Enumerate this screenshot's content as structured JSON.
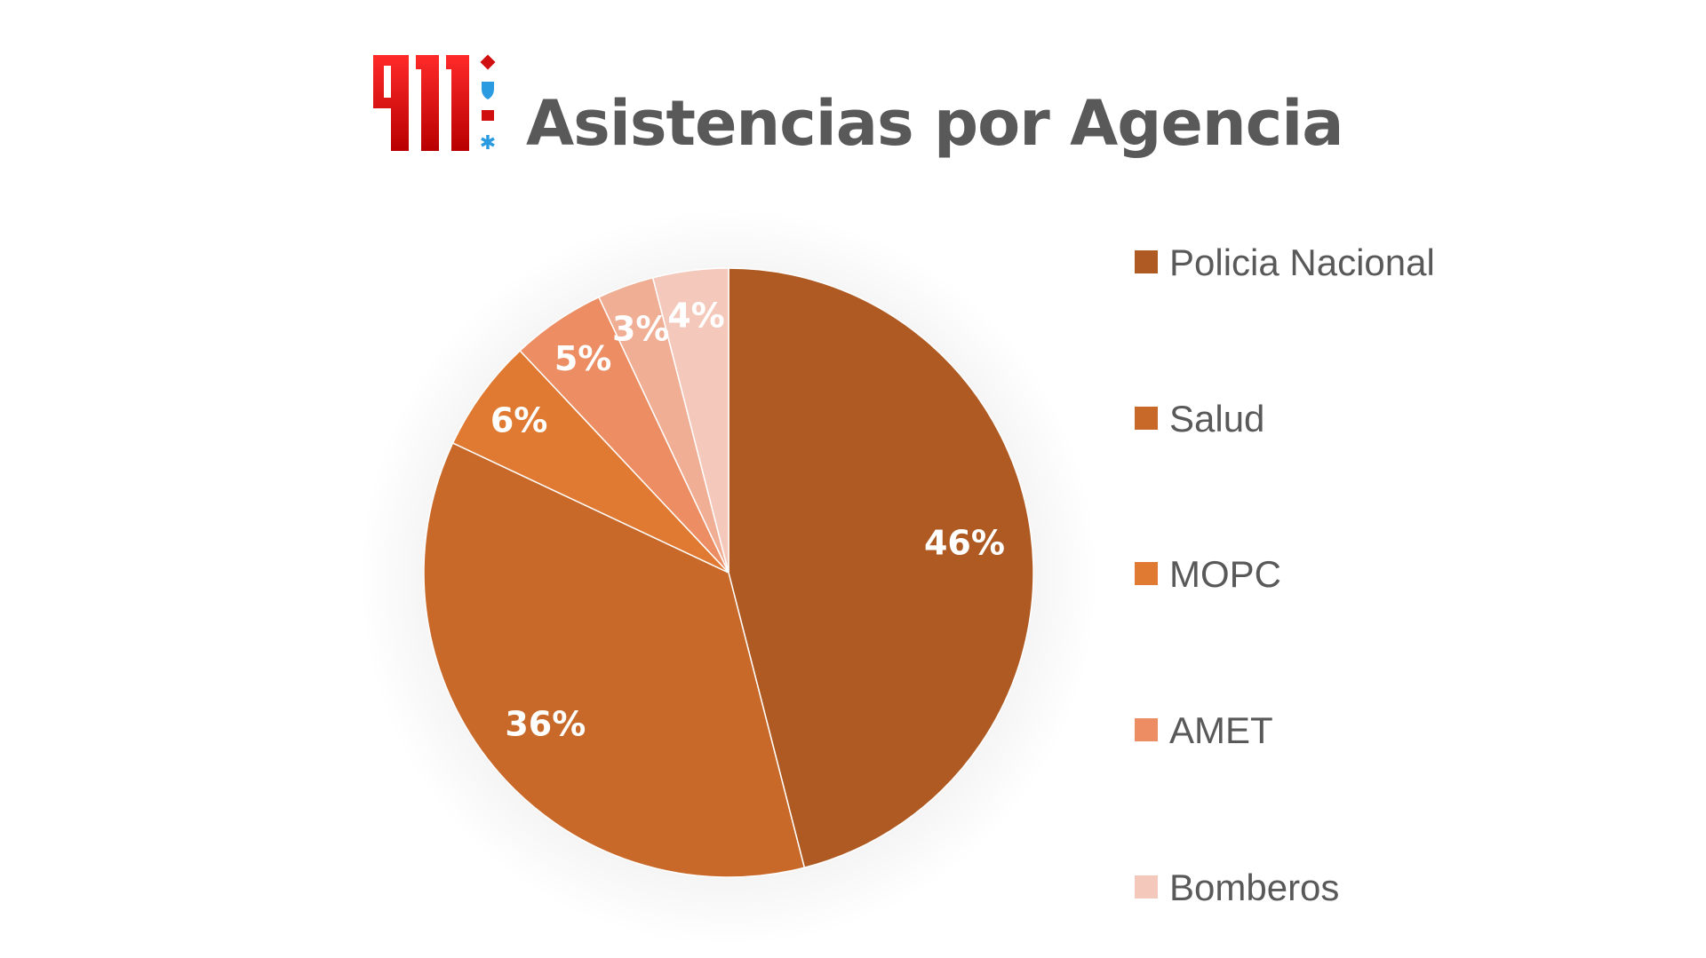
{
  "header": {
    "logo_text": "911",
    "title": "Asistencias por Agencia"
  },
  "chart_data": {
    "type": "pie",
    "title": "Asistencias por Agencia",
    "legend_position": "right",
    "categories": [
      "Policia Nacional",
      "Salud",
      "MOPC",
      "AMET",
      null,
      "Bomberos"
    ],
    "values": [
      46,
      36,
      6,
      5,
      3,
      4
    ],
    "labels": [
      "46%",
      "36%",
      "6%",
      "5%",
      "3%",
      "4%"
    ],
    "colors": [
      "#AE5A22",
      "#C8692A",
      "#E07A32",
      "#EC8D63",
      "#F0AE95",
      "#F4C9BB"
    ],
    "legend": [
      {
        "label": "Policia Nacional",
        "color": "#AE5A22"
      },
      {
        "label": "Salud",
        "color": "#C8692A"
      },
      {
        "label": "MOPC",
        "color": "#E07A32"
      },
      {
        "label": "AMET",
        "color": "#EC8D63"
      },
      {
        "label": "Bomberos",
        "color": "#F4C9BB"
      }
    ]
  }
}
